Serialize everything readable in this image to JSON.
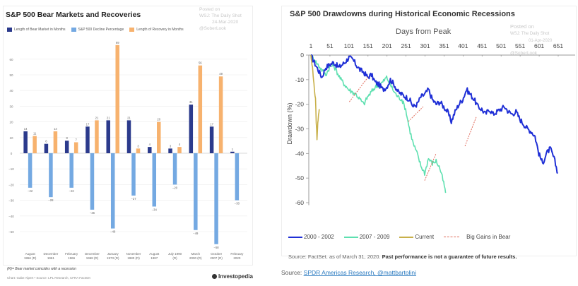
{
  "chart_data": [
    {
      "type": "bar",
      "title": "S&P 500 Bear Markets and Recoveries",
      "watermark": [
        "Posted on",
        "WSJ: The Daily Shot",
        "24-Mar-2020",
        "@SoberLook"
      ],
      "xlabel": "",
      "ylabel": "",
      "ylim": [
        -55,
        70
      ],
      "yticks": [
        60,
        50,
        40,
        30,
        20,
        10,
        0,
        -10,
        -20,
        -30,
        -40,
        -50
      ],
      "ytick_labels": [
        "60",
        "50",
        "40",
        "30",
        "20",
        "10",
        "0",
        "−10",
        "−20",
        "−30",
        "−40",
        "−50"
      ],
      "grid": true,
      "legend_position": "top-left",
      "categories": [
        [
          "August",
          "1956 (R)"
        ],
        [
          "December",
          "1961"
        ],
        [
          "February",
          "1966"
        ],
        [
          "December",
          "1968 (R)"
        ],
        [
          "January",
          "1973 (R)"
        ],
        [
          "November",
          "1980 (R)"
        ],
        [
          "August",
          "1987"
        ],
        [
          "July 1990",
          "(R)"
        ],
        [
          "March",
          "2000 (R)"
        ],
        [
          "October",
          "2007 (R)"
        ],
        [
          "February",
          "2020"
        ]
      ],
      "series": [
        {
          "name": "Length of Bear Market in Months",
          "color": "#2b3a8c",
          "values": [
            14,
            6,
            8,
            17,
            21,
            21,
            4,
            3,
            31,
            17,
            1
          ]
        },
        {
          "name": "S&P 500 Decline Percentage",
          "color": "#74a9e2",
          "values": [
            -22,
            -28,
            -22,
            -36,
            -48,
            -27,
            -34,
            -20,
            -49,
            -58,
            -30
          ]
        },
        {
          "name": "Length of Recovery in Months",
          "color": "#f7b26e",
          "values": [
            11,
            14,
            7,
            21,
            69,
            3,
            20,
            4,
            56,
            49,
            null
          ]
        }
      ],
      "data_labels": [
        [
          "14",
          "6",
          "8",
          "17",
          "21",
          "21",
          "4",
          "3",
          "31",
          "17",
          "1"
        ],
        [
          "−22",
          "−28",
          "−22",
          "−36",
          "−48",
          "−27",
          "−34",
          "−20",
          "−49",
          "−58",
          "−30"
        ],
        [
          "11",
          "14",
          "7",
          "21",
          "69",
          "3",
          "20",
          "4",
          "56",
          "49",
          ""
        ]
      ],
      "footnote": "(R)= Bear market coincides with a recession",
      "credit": "Chart: Gabe Alpert • Source: LPL Research, CFRA FactSet",
      "brand": "Investopedia"
    },
    {
      "type": "line",
      "title": "S&P 500 Drawdowns during Historical Economic Recessions",
      "watermark": [
        "Posted on",
        "WSJ: The Daily Shot",
        "01-Apr-2020",
        "@SoberLook"
      ],
      "xlabel": "Days from Peak",
      "ylabel": "Drawdown (%)",
      "xlim": [
        1,
        690
      ],
      "ylim": [
        -62,
        0
      ],
      "xticks": [
        1,
        51,
        101,
        151,
        201,
        251,
        301,
        351,
        401,
        451,
        501,
        551,
        601,
        651
      ],
      "yticks": [
        0,
        -10,
        -20,
        -30,
        -40,
        -50,
        -60
      ],
      "grid": false,
      "legend_position": "bottom",
      "series": [
        {
          "name": "2000 - 2002",
          "color": "#1f2fd6",
          "x": [
            1,
            10,
            20,
            30,
            40,
            50,
            60,
            75,
            90,
            101,
            112,
            120,
            130,
            140,
            150,
            160,
            170,
            180,
            190,
            200,
            210,
            220,
            230,
            240,
            250,
            260,
            270,
            280,
            290,
            300,
            310,
            320,
            330,
            340,
            350,
            360,
            370,
            380,
            390,
            400,
            410,
            420,
            430,
            440,
            450,
            460,
            470,
            480,
            490,
            500,
            510,
            520,
            530,
            540,
            550,
            560,
            570,
            580,
            590,
            600,
            610,
            620,
            630,
            640,
            650
          ],
          "y": [
            0,
            -3,
            -6,
            -9,
            -5,
            -4,
            -3,
            -5,
            -3,
            -1,
            -2,
            -4,
            -6,
            -7,
            -9,
            -8,
            -11,
            -12,
            -14,
            -13,
            -10,
            -12,
            -15,
            -16,
            -17,
            -18,
            -21,
            -20,
            -17,
            -16,
            -14,
            -18,
            -20,
            -19,
            -21,
            -23,
            -27,
            -23,
            -20,
            -18,
            -14,
            -16,
            -18,
            -21,
            -22,
            -24,
            -22,
            -24,
            -23,
            -22,
            -21,
            -23,
            -24,
            -23,
            -26,
            -28,
            -30,
            -31,
            -33,
            -40,
            -44,
            -40,
            -38,
            -42,
            -48
          ]
        },
        {
          "name": "2007 - 2009",
          "color": "#5ee0b0",
          "x": [
            1,
            10,
            20,
            30,
            40,
            50,
            60,
            70,
            80,
            90,
            100,
            110,
            120,
            130,
            140,
            150,
            160,
            170,
            180,
            190,
            200,
            210,
            220,
            230,
            240,
            250,
            260,
            270,
            280,
            290,
            300,
            310,
            320,
            330,
            340,
            350,
            355
          ],
          "y": [
            0,
            -2,
            -4,
            -6,
            -8,
            -5,
            -4,
            -7,
            -10,
            -12,
            -14,
            -15,
            -16,
            -18,
            -20,
            -17,
            -15,
            -13,
            -12,
            -11,
            -9,
            -12,
            -15,
            -17,
            -18,
            -22,
            -30,
            -36,
            -40,
            -45,
            -48,
            -42,
            -44,
            -43,
            -46,
            -52,
            -56
          ]
        },
        {
          "name": "Current",
          "color": "#c8b04a",
          "x": [
            1,
            3,
            5,
            7,
            9,
            11,
            13,
            15,
            17,
            19,
            21,
            23
          ],
          "y": [
            0,
            -3,
            -5,
            -8,
            -12,
            -15,
            -18,
            -27,
            -34,
            -28,
            -24,
            -22
          ]
        },
        {
          "name": "Big Gains in Bear",
          "color": "#e06a5a",
          "dashed": true,
          "segments": [
            {
              "x": [
                102,
                151
              ],
              "y": [
                -19,
                -9
              ]
            },
            {
              "x": [
                257,
                296
              ],
              "y": [
                -27,
                -21
              ]
            },
            {
              "x": [
                406,
                436
              ],
              "y": [
                -37,
                -25
              ]
            },
            {
              "x": [
                300,
                330
              ],
              "y": [
                -51,
                -40
              ]
            }
          ]
        }
      ],
      "source": "Source: FactSet. as of March 31, 2020.",
      "disclaimer": "Past performance is not a guarantee of future results."
    }
  ],
  "caption": {
    "prefix": "Source: ",
    "link": "SPDR Americas Research, @mattbartolini"
  }
}
